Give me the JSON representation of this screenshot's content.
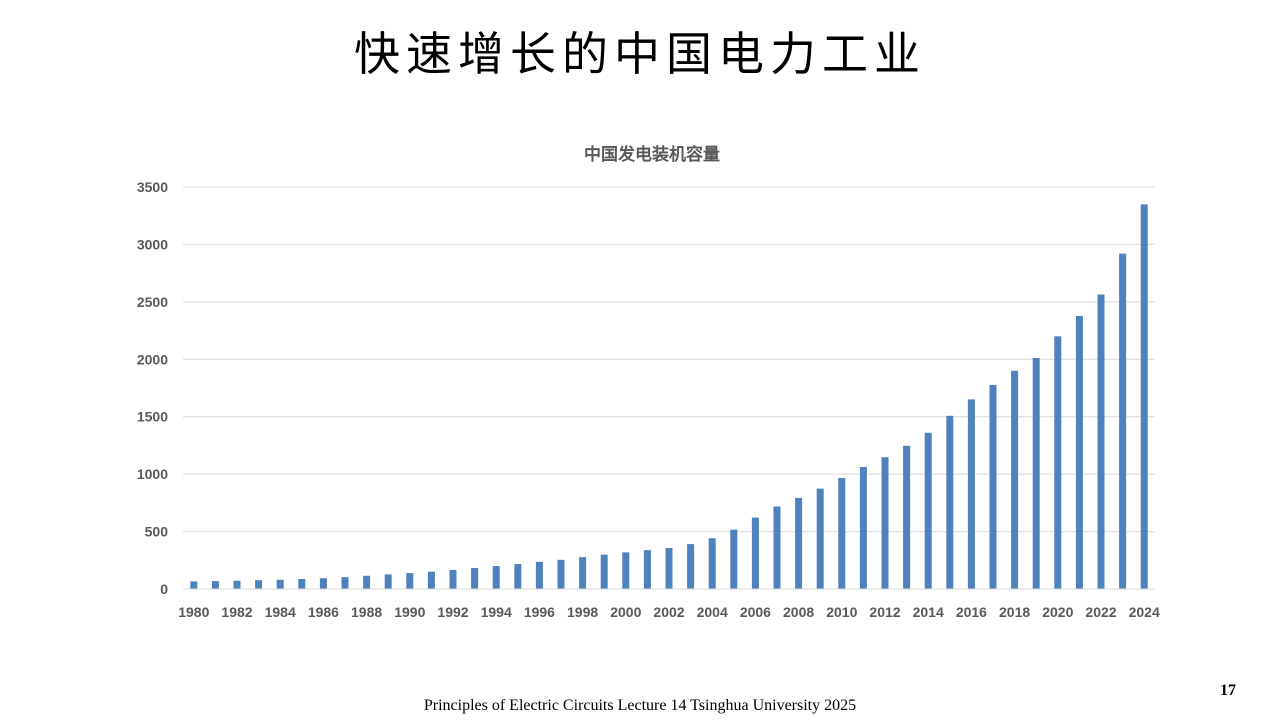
{
  "slide": {
    "title": "快速增长的中国电力工业",
    "footer": "Principles of Electric Circuits Lecture 14 Tsinghua University  2025",
    "page_number": "17"
  },
  "chart_data": {
    "type": "bar",
    "title": "中国发电装机容量",
    "xlabel": "",
    "ylabel": "",
    "ylim": [
      0,
      3500
    ],
    "yticks": [
      0,
      500,
      1000,
      1500,
      2000,
      2500,
      3000,
      3500
    ],
    "grid": true,
    "legend": "none",
    "bar_color": "#4f81bd",
    "categories": [
      "1980",
      "1981",
      "1982",
      "1983",
      "1984",
      "1985",
      "1986",
      "1987",
      "1988",
      "1989",
      "1990",
      "1991",
      "1992",
      "1993",
      "1994",
      "1995",
      "1996",
      "1997",
      "1998",
      "1999",
      "2000",
      "2001",
      "2002",
      "2003",
      "2004",
      "2005",
      "2006",
      "2007",
      "2008",
      "2009",
      "2010",
      "2011",
      "2012",
      "2013",
      "2014",
      "2015",
      "2016",
      "2017",
      "2018",
      "2019",
      "2020",
      "2021",
      "2022",
      "2023",
      "2024"
    ],
    "tick_labels": [
      "1980",
      "",
      "1982",
      "",
      "1984",
      "",
      "1986",
      "",
      "1988",
      "",
      "1990",
      "",
      "1992",
      "",
      "1994",
      "",
      "1996",
      "",
      "1998",
      "",
      "2000",
      "",
      "2002",
      "",
      "2004",
      "",
      "2006",
      "",
      "2008",
      "",
      "2010",
      "",
      "2012",
      "",
      "2014",
      "",
      "2016",
      "",
      "2018",
      "",
      "2020",
      "",
      "2022",
      "",
      "2024"
    ],
    "values": [
      66,
      69,
      72,
      77,
      80,
      87,
      94,
      103,
      115,
      127,
      138,
      151,
      166,
      183,
      200,
      217,
      236,
      254,
      277,
      299,
      319,
      338,
      357,
      391,
      442,
      517,
      622,
      718,
      793,
      874,
      966,
      1062,
      1147,
      1247,
      1360,
      1508,
      1651,
      1777,
      1900,
      2011,
      2200,
      2377,
      2564,
      2920,
      3349
    ]
  }
}
